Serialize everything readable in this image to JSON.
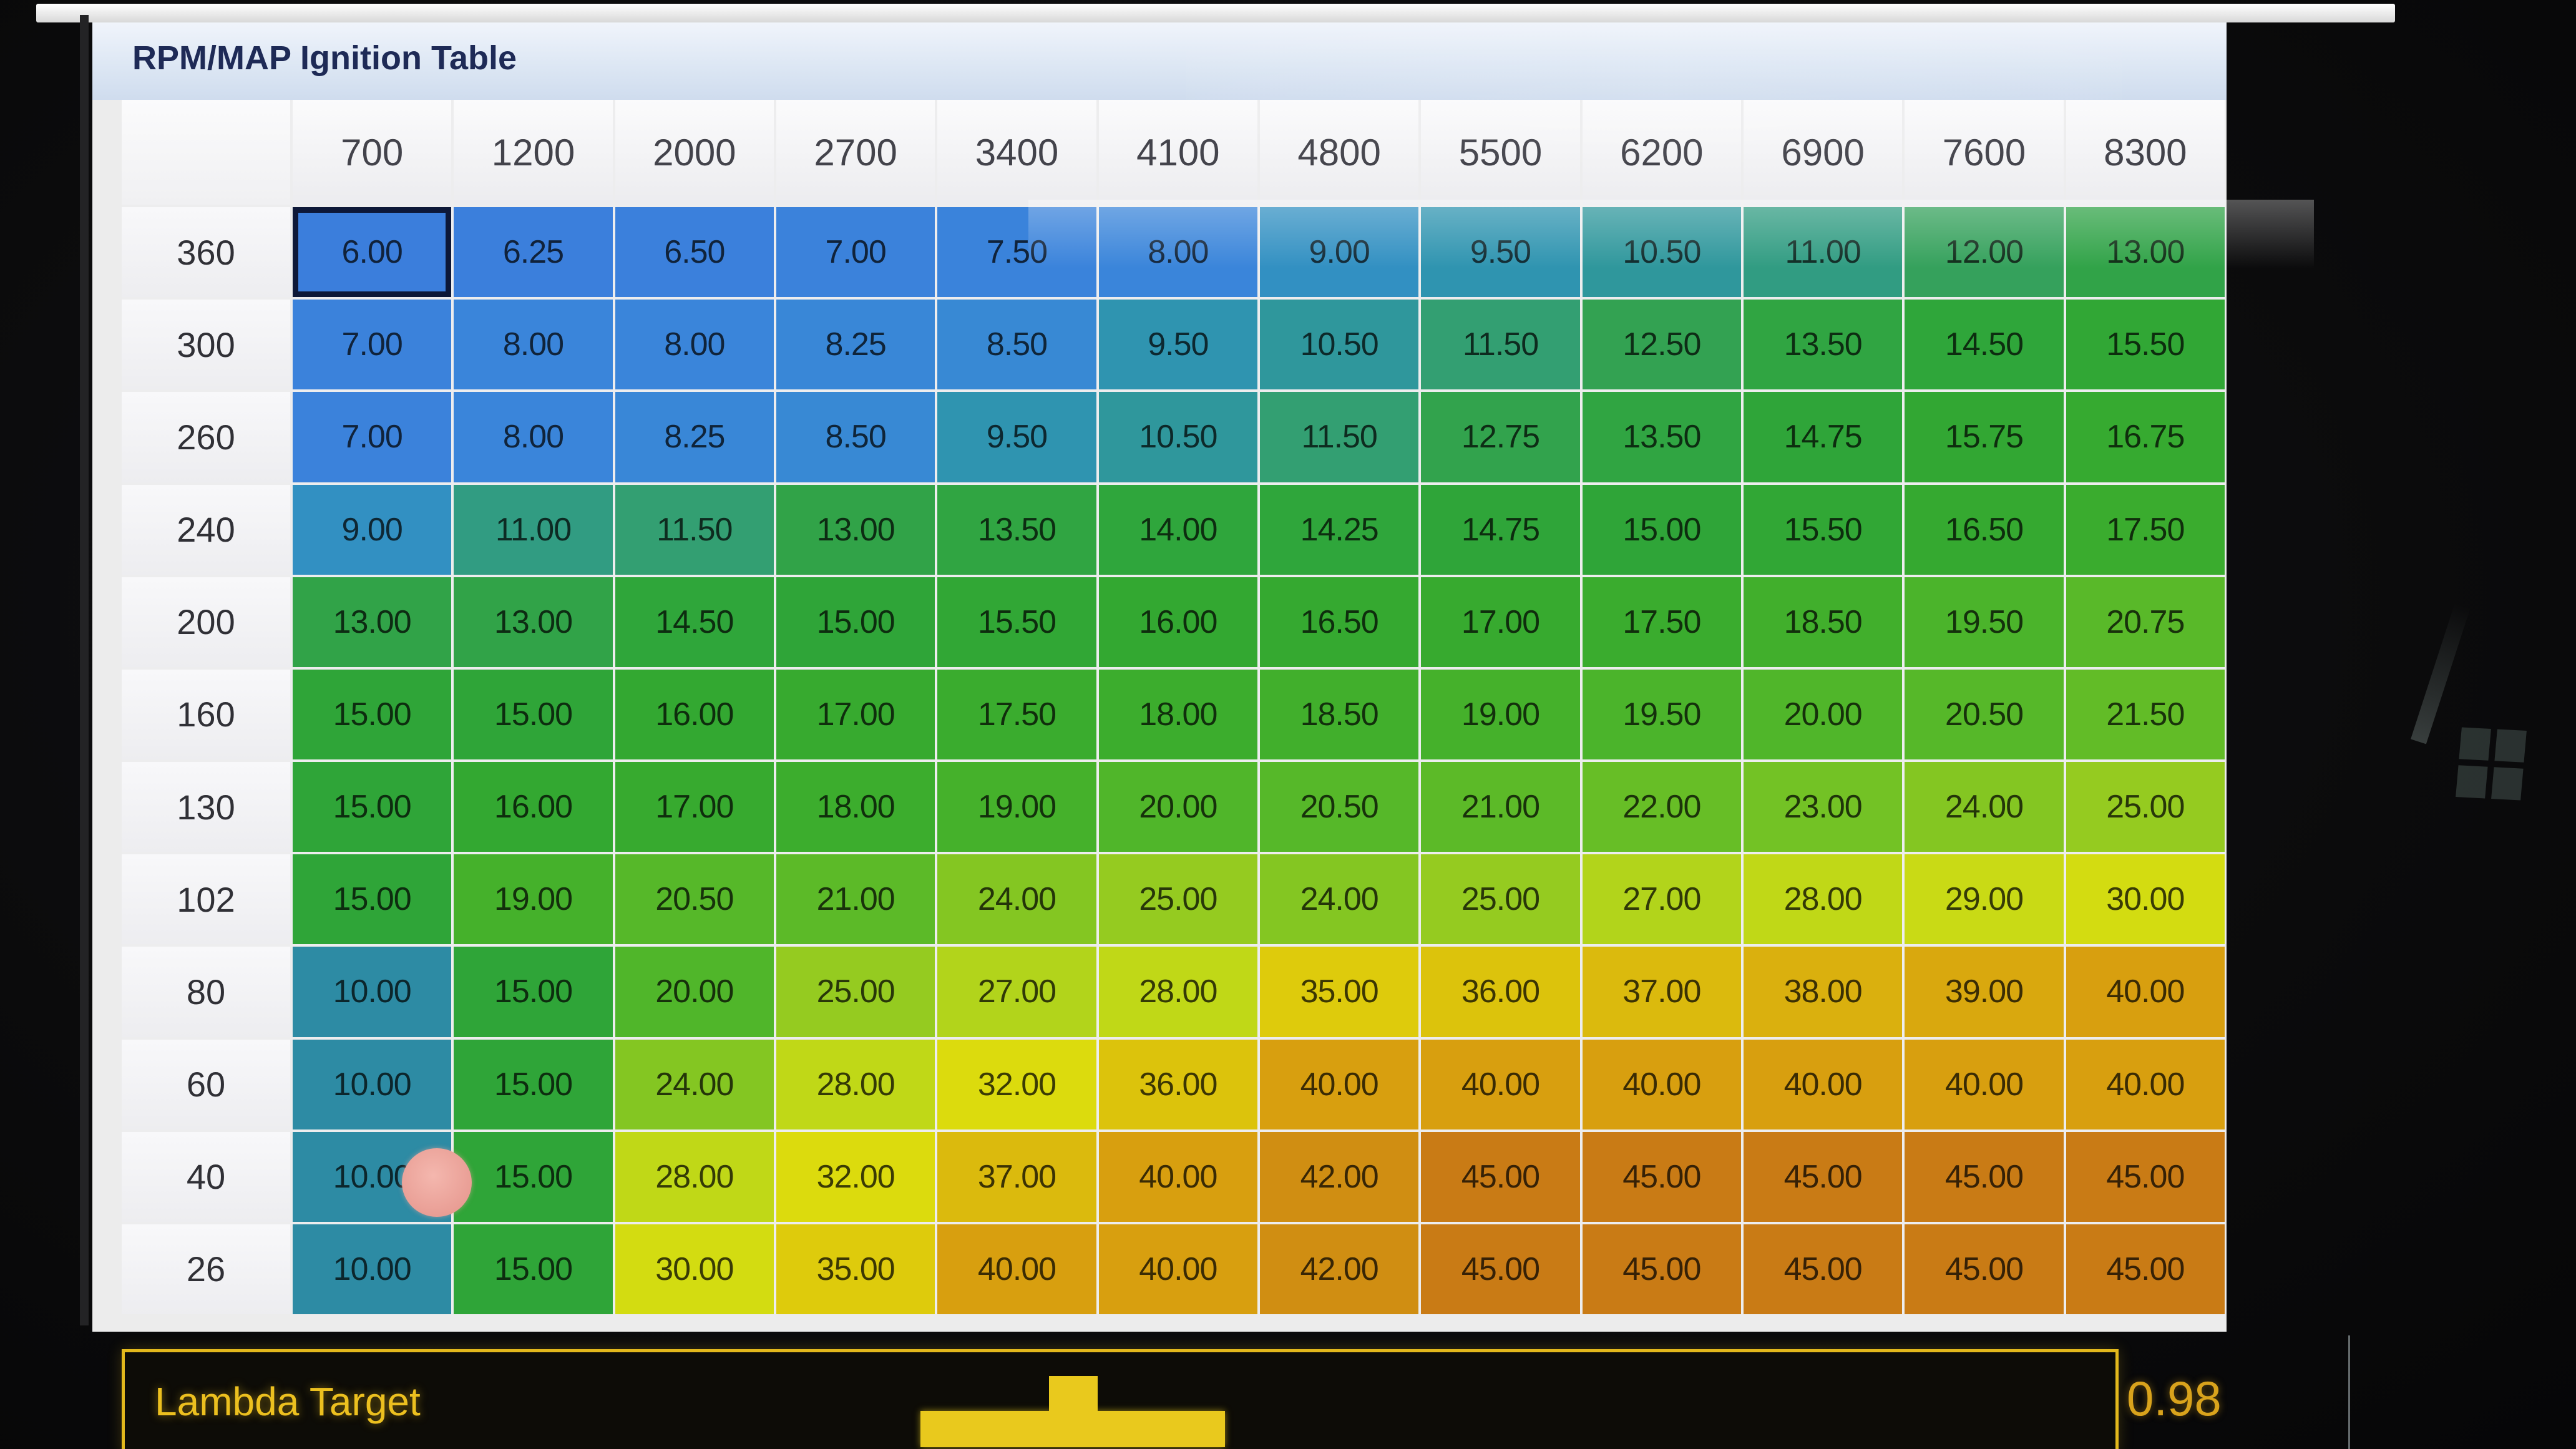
{
  "window": {
    "title": "RPM/MAP Ignition Table"
  },
  "table": {
    "selected": {
      "row_index": 0,
      "col_index": 0
    }
  },
  "chart_data": {
    "type": "heatmap",
    "title": "RPM/MAP Ignition Table",
    "x_axis": "RPM",
    "y_axis": "MAP",
    "x": [
      700,
      1200,
      2000,
      2700,
      3400,
      4100,
      4800,
      5500,
      6200,
      6900,
      7600,
      8300
    ],
    "y": [
      360,
      300,
      260,
      240,
      200,
      160,
      130,
      102,
      80,
      60,
      40,
      26
    ],
    "values": [
      [
        6.0,
        6.25,
        6.5,
        7.0,
        7.5,
        8.0,
        9.0,
        9.5,
        10.5,
        11.0,
        12.0,
        13.0
      ],
      [
        7.0,
        8.0,
        8.0,
        8.25,
        8.5,
        9.5,
        10.5,
        11.5,
        12.5,
        13.5,
        14.5,
        15.5
      ],
      [
        7.0,
        8.0,
        8.25,
        8.5,
        9.5,
        10.5,
        11.5,
        12.75,
        13.5,
        14.75,
        15.75,
        16.75
      ],
      [
        9.0,
        11.0,
        11.5,
        13.0,
        13.5,
        14.0,
        14.25,
        14.75,
        15.0,
        15.5,
        16.5,
        17.5
      ],
      [
        13.0,
        13.0,
        14.5,
        15.0,
        15.5,
        16.0,
        16.5,
        17.0,
        17.5,
        18.5,
        19.5,
        20.75
      ],
      [
        15.0,
        15.0,
        16.0,
        17.0,
        17.5,
        18.0,
        18.5,
        19.0,
        19.5,
        20.0,
        20.5,
        21.5
      ],
      [
        15.0,
        16.0,
        17.0,
        18.0,
        19.0,
        20.0,
        20.5,
        21.0,
        22.0,
        23.0,
        24.0,
        25.0
      ],
      [
        15.0,
        19.0,
        20.5,
        21.0,
        24.0,
        25.0,
        24.0,
        25.0,
        27.0,
        28.0,
        29.0,
        30.0
      ],
      [
        10.0,
        15.0,
        20.0,
        25.0,
        27.0,
        28.0,
        35.0,
        36.0,
        37.0,
        38.0,
        39.0,
        40.0
      ],
      [
        10.0,
        15.0,
        24.0,
        28.0,
        32.0,
        36.0,
        40.0,
        40.0,
        40.0,
        40.0,
        40.0,
        40.0
      ],
      [
        10.0,
        15.0,
        28.0,
        32.0,
        37.0,
        40.0,
        42.0,
        45.0,
        45.0,
        45.0,
        45.0,
        45.0
      ],
      [
        10.0,
        15.0,
        30.0,
        35.0,
        40.0,
        40.0,
        42.0,
        45.0,
        45.0,
        45.0,
        45.0,
        45.0
      ]
    ]
  },
  "lambda": {
    "label": "Lambda Target",
    "value": "0.98"
  },
  "colors": {
    "selected_border": "#0D1838",
    "lambda_accent": "#E2B81C",
    "touch_dot": "#E99E95",
    "scale_stops": [
      [
        6.0,
        "#3B7EDC"
      ],
      [
        8.0,
        "#3A85DA"
      ],
      [
        8.5,
        "#3889D4"
      ],
      [
        9.0,
        "#3290C2"
      ],
      [
        9.5,
        "#2F94B0"
      ],
      [
        10.0,
        "#2D8BA4"
      ],
      [
        10.5,
        "#2F979C"
      ],
      [
        11.0,
        "#319C82"
      ],
      [
        11.5,
        "#339F72"
      ],
      [
        12.0,
        "#35A15C"
      ],
      [
        13.0,
        "#31A348"
      ],
      [
        14.0,
        "#2FA63C"
      ],
      [
        15.0,
        "#2FA538"
      ],
      [
        16.0,
        "#33A831"
      ],
      [
        17.0,
        "#37AA2F"
      ],
      [
        18.0,
        "#3CAD2D"
      ],
      [
        19.0,
        "#45B12B"
      ],
      [
        20.0,
        "#50B62A"
      ],
      [
        21.0,
        "#5CBA28"
      ],
      [
        22.0,
        "#67BE26"
      ],
      [
        23.0,
        "#73C225"
      ],
      [
        24.0,
        "#84C622"
      ],
      [
        25.0,
        "#95CB20"
      ],
      [
        27.0,
        "#B2D41B"
      ],
      [
        28.0,
        "#C0D817"
      ],
      [
        29.0,
        "#C9DA15"
      ],
      [
        30.0,
        "#D3DC11"
      ],
      [
        32.0,
        "#DCDB0D"
      ],
      [
        33.0,
        "#DDD50C"
      ],
      [
        35.0,
        "#DECB0C"
      ],
      [
        36.0,
        "#DCC30C"
      ],
      [
        37.0,
        "#DBBA0D"
      ],
      [
        38.0,
        "#DAB00E"
      ],
      [
        39.0,
        "#D9A80E"
      ],
      [
        40.0,
        "#D89F0F"
      ],
      [
        42.0,
        "#D08E12"
      ],
      [
        45.0,
        "#C97B15"
      ]
    ]
  }
}
